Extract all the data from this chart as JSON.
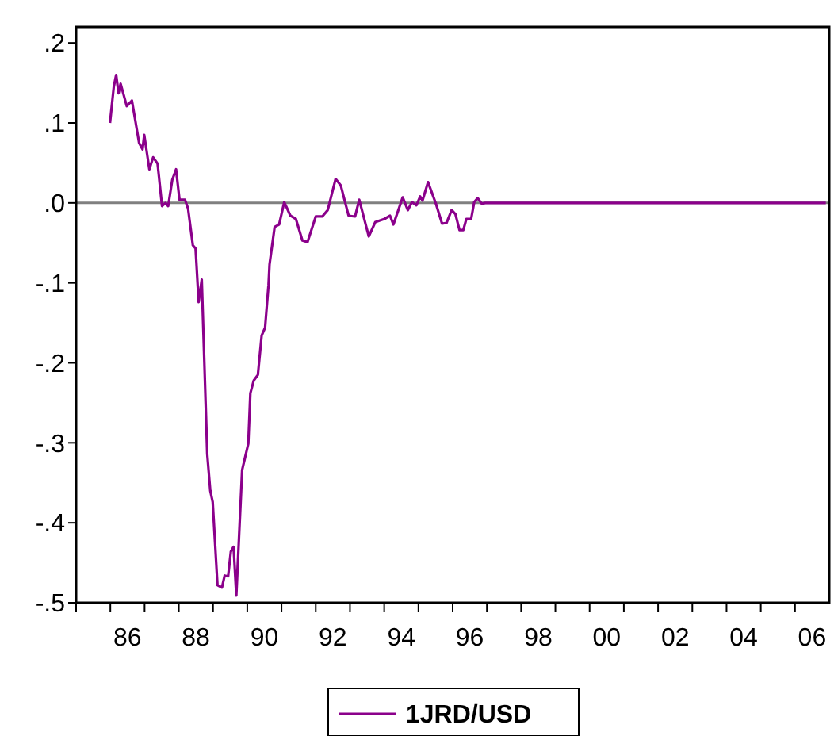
{
  "chart_data": {
    "type": "line",
    "xlim": [
      1984.5,
      2006.5
    ],
    "ylim": [
      -0.5,
      0.22
    ],
    "xticks": [
      {
        "value": 1984.5,
        "label": null
      },
      {
        "value": 1985.5,
        "label": null
      },
      {
        "value": 1986.5,
        "label": null
      },
      {
        "value": 1987.5,
        "label": null
      },
      {
        "value": 1988.5,
        "label": null
      },
      {
        "value": 1989.5,
        "label": null
      },
      {
        "value": 1990.5,
        "label": null
      },
      {
        "value": 1991.5,
        "label": null
      },
      {
        "value": 1992.5,
        "label": null
      },
      {
        "value": 1993.5,
        "label": null
      },
      {
        "value": 1994.5,
        "label": null
      },
      {
        "value": 1995.5,
        "label": null
      },
      {
        "value": 1996.5,
        "label": null
      },
      {
        "value": 1997.5,
        "label": null
      },
      {
        "value": 1998.5,
        "label": null
      },
      {
        "value": 1999.5,
        "label": null
      },
      {
        "value": 2000.5,
        "label": null
      },
      {
        "value": 2001.5,
        "label": null
      },
      {
        "value": 2002.5,
        "label": null
      },
      {
        "value": 2003.5,
        "label": null
      },
      {
        "value": 2004.5,
        "label": null
      },
      {
        "value": 2005.5,
        "label": null
      },
      {
        "value": 1986,
        "label": "86"
      },
      {
        "value": 1988,
        "label": "88"
      },
      {
        "value": 1990,
        "label": "90"
      },
      {
        "value": 1992,
        "label": "92"
      },
      {
        "value": 1994,
        "label": "94"
      },
      {
        "value": 1996,
        "label": "96"
      },
      {
        "value": 1998,
        "label": "98"
      },
      {
        "value": 2000,
        "label": "00"
      },
      {
        "value": 2002,
        "label": "02"
      },
      {
        "value": 2004,
        "label": "04"
      },
      {
        "value": 2006,
        "label": "06"
      }
    ],
    "yticks": [
      {
        "value": 0.2,
        "label": ".2"
      },
      {
        "value": 0.1,
        "label": ".1"
      },
      {
        "value": 0,
        "label": ".0"
      },
      {
        "value": -0.1,
        "label": "-.1"
      },
      {
        "value": -0.2,
        "label": "-.2"
      },
      {
        "value": -0.3,
        "label": "-.3"
      },
      {
        "value": -0.4,
        "label": "-.4"
      },
      {
        "value": -0.5,
        "label": "-.5"
      }
    ],
    "ref_lines": [
      {
        "axis": "y",
        "value": 0,
        "color": "#808080"
      }
    ],
    "legend": "bottom",
    "grid": false,
    "series": [
      {
        "name": "1JRD/USD",
        "color": "#8b008b",
        "x": [
          1985.49,
          1985.6,
          1985.67,
          1985.74,
          1985.8,
          1985.98,
          1986.13,
          1986.34,
          1986.44,
          1986.49,
          1986.64,
          1986.75,
          1986.88,
          1987.01,
          1987.11,
          1987.19,
          1987.31,
          1987.42,
          1987.52,
          1987.68,
          1987.77,
          1987.91,
          1987.99,
          1988.08,
          1988.17,
          1988.33,
          1988.42,
          1988.49,
          1988.63,
          1988.76,
          1988.84,
          1988.94,
          1989.02,
          1989.1,
          1989.18,
          1989.35,
          1989.53,
          1989.59,
          1989.69,
          1989.81,
          1989.92,
          1990.02,
          1990.12,
          1990.15,
          1990.3,
          1990.43,
          1990.58,
          1990.76,
          1990.92,
          1991.11,
          1991.26,
          1991.5,
          1991.69,
          1991.85,
          1992.08,
          1992.23,
          1992.46,
          1992.65,
          1992.77,
          1993.05,
          1993.24,
          1993.51,
          1993.67,
          1993.77,
          1994.04,
          1994.19,
          1994.31,
          1994.44,
          1994.55,
          1994.62,
          1994.78,
          1995.01,
          1995.19,
          1995.32,
          1995.47,
          1995.58,
          1995.7,
          1995.81,
          1995.9,
          1996.04,
          1996.13,
          1996.23,
          1996.35,
          1996.45,
          2006.4
        ],
        "values": [
          0.1,
          0.145,
          0.16,
          0.137,
          0.149,
          0.121,
          0.128,
          0.075,
          0.067,
          0.085,
          0.042,
          0.057,
          0.049,
          -0.004,
          0,
          -0.004,
          0.029,
          0.042,
          0.004,
          0.004,
          -0.007,
          -0.053,
          -0.057,
          -0.124,
          -0.096,
          -0.314,
          -0.36,
          -0.374,
          -0.478,
          -0.481,
          -0.466,
          -0.467,
          -0.436,
          -0.43,
          -0.491,
          -0.334,
          -0.301,
          -0.238,
          -0.222,
          -0.215,
          -0.166,
          -0.156,
          -0.103,
          -0.077,
          -0.03,
          -0.027,
          0.001,
          -0.016,
          -0.02,
          -0.047,
          -0.049,
          -0.017,
          -0.017,
          -0.009,
          0.03,
          0.022,
          -0.016,
          -0.017,
          0.004,
          -0.042,
          -0.024,
          -0.02,
          -0.016,
          -0.027,
          0.007,
          -0.009,
          0.001,
          -0.003,
          0.008,
          0.003,
          0.026,
          -0.001,
          -0.026,
          -0.025,
          -0.009,
          -0.014,
          -0.034,
          -0.034,
          -0.02,
          -0.02,
          0.001,
          0.006,
          -0.001,
          0,
          0
        ]
      }
    ]
  }
}
